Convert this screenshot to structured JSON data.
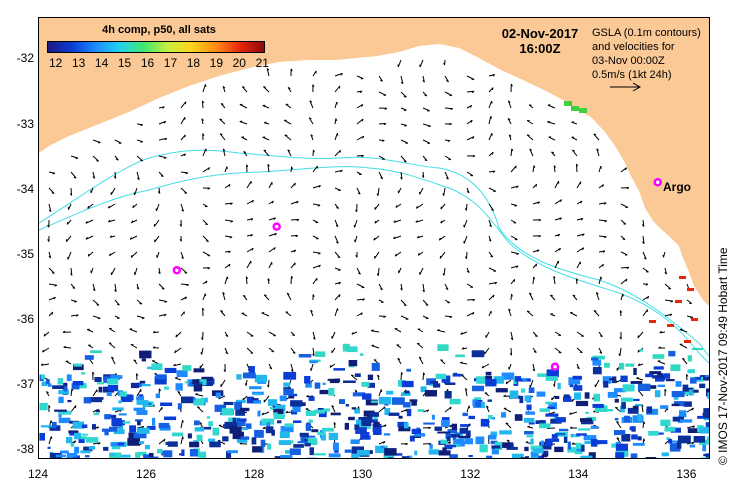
{
  "map": {
    "legend": {
      "title": "4h comp, p50, all sats",
      "ticks": [
        "12",
        "13",
        "14",
        "15",
        "16",
        "17",
        "18",
        "19",
        "20",
        "21"
      ]
    },
    "date": "02-Nov-2017",
    "time": "16:00Z",
    "info_lines": [
      "GSLA (0.1m contours)",
      "and velocities for",
      "03-Nov 00:00Z",
      "0.5m/s (1kt 24h)"
    ],
    "argo_label": "Argo",
    "credit": "© IMOS 17-Nov-2017 09:49 Hobart Time",
    "y_ticks": [
      "-32",
      "-33",
      "-34",
      "-35",
      "-36",
      "-37",
      "-38"
    ],
    "x_ticks": [
      "124",
      "126",
      "128",
      "130",
      "132",
      "134",
      "136"
    ],
    "extent": {
      "lon": [
        124,
        136.4
      ],
      "lat": [
        -38.1,
        -31.35
      ]
    },
    "argo_floats": [
      {
        "lon": 126.55,
        "lat": -35.22
      },
      {
        "lon": 128.4,
        "lat": -34.55
      },
      {
        "lon": 133.55,
        "lat": -36.7
      },
      {
        "lon": 135.45,
        "lat": -33.87
      }
    ],
    "colors": {
      "land": "#fbc996",
      "contour": "#44dde6",
      "argo": "#ff00ff",
      "arrow": "#000000"
    }
  }
}
